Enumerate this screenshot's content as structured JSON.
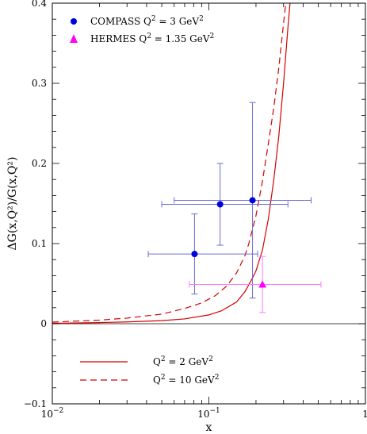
{
  "chart_data": {
    "type": "scatter",
    "xlabel": "x",
    "ylabel": "ΔG(x,Q²)/G(x,Q²)",
    "x_scale": "log",
    "xlim": [
      0.01,
      1
    ],
    "ylim": [
      -0.1,
      0.4
    ],
    "x_ticks": [
      {
        "value": 0.01,
        "base": "10",
        "exp": "−2"
      },
      {
        "value": 0.1,
        "base": "10",
        "exp": "−1"
      },
      {
        "value": 1,
        "base": "1",
        "exp": ""
      }
    ],
    "y_ticks": [
      {
        "value": -0.1,
        "label": "−0.1"
      },
      {
        "value": 0,
        "label": "0"
      },
      {
        "value": 0.1,
        "label": "0.1"
      },
      {
        "value": 0.2,
        "label": "0.2"
      },
      {
        "value": 0.3,
        "label": "0.3"
      },
      {
        "value": 0.4,
        "label": "0.4"
      }
    ],
    "zero_line": true,
    "legend_top": {
      "position": "top-left",
      "entries": [
        {
          "name": "COMPASS",
          "qlabel": "Q",
          "qexp": "2",
          "qval": "= 3 GeV",
          "unit_exp": "2",
          "color": "#0000dd",
          "marker": "circle"
        },
        {
          "name": "HERMES",
          "qlabel": "Q",
          "qexp": "2",
          "qval": "= 1.35 GeV",
          "unit_exp": "2",
          "color": "#ff00ff",
          "marker": "triangle"
        }
      ]
    },
    "legend_bottom": {
      "position": "bottom-left",
      "entries": [
        {
          "qlabel": "Q",
          "qexp": "2",
          "qval": "= 2 GeV",
          "unit_exp": "2",
          "dash": "none"
        },
        {
          "qlabel": "Q",
          "qexp": "2",
          "qval": "= 10 GeV",
          "unit_exp": "2",
          "dash": "8,5"
        }
      ]
    },
    "points": [
      {
        "series": "COMPASS",
        "x": 0.081,
        "y": 0.087,
        "xerr": [
          0.041,
          0.205
        ],
        "yerr": [
          0.037,
          0.137
        ],
        "color": "#0000dd",
        "error_color": "#6b6bd6",
        "marker": "circle"
      },
      {
        "series": "COMPASS",
        "x": 0.118,
        "y": 0.149,
        "xerr": [
          0.05,
          0.32
        ],
        "yerr": [
          0.098,
          0.2
        ],
        "color": "#0000dd",
        "error_color": "#6b6bd6",
        "marker": "circle"
      },
      {
        "series": "COMPASS",
        "x": 0.19,
        "y": 0.154,
        "xerr": [
          0.06,
          0.45
        ],
        "yerr": [
          0.032,
          0.276
        ],
        "color": "#0000dd",
        "error_color": "#6b6bd6",
        "marker": "circle"
      },
      {
        "series": "HERMES",
        "x": 0.22,
        "y": 0.049,
        "xerr": [
          0.075,
          0.52
        ],
        "yerr": [
          0.014,
          0.084
        ],
        "color": "#ff00ff",
        "error_color": "#ff77ff",
        "marker": "triangle"
      }
    ],
    "curves": [
      {
        "label_ref": 0,
        "color": "#d40000",
        "dash": "none",
        "x": [
          0.01,
          0.02,
          0.03,
          0.05,
          0.07,
          0.1,
          0.12,
          0.15,
          0.17,
          0.19,
          0.2,
          0.22,
          0.24,
          0.26,
          0.28,
          0.3,
          0.32,
          0.33
        ],
        "y": [
          0.0005,
          0.0014,
          0.0022,
          0.0038,
          0.006,
          0.011,
          0.016,
          0.027,
          0.04,
          0.057,
          0.066,
          0.092,
          0.131,
          0.18,
          0.235,
          0.3,
          0.37,
          0.4
        ]
      },
      {
        "label_ref": 1,
        "color": "#d40000",
        "dash": "8,5",
        "x": [
          0.01,
          0.02,
          0.03,
          0.05,
          0.07,
          0.09,
          0.11,
          0.13,
          0.15,
          0.17,
          0.18,
          0.2,
          0.22,
          0.24,
          0.26,
          0.28,
          0.3,
          0.31
        ],
        "y": [
          0.002,
          0.0045,
          0.007,
          0.012,
          0.019,
          0.026,
          0.035,
          0.047,
          0.063,
          0.085,
          0.1,
          0.135,
          0.178,
          0.225,
          0.27,
          0.32,
          0.375,
          0.4
        ]
      }
    ]
  }
}
